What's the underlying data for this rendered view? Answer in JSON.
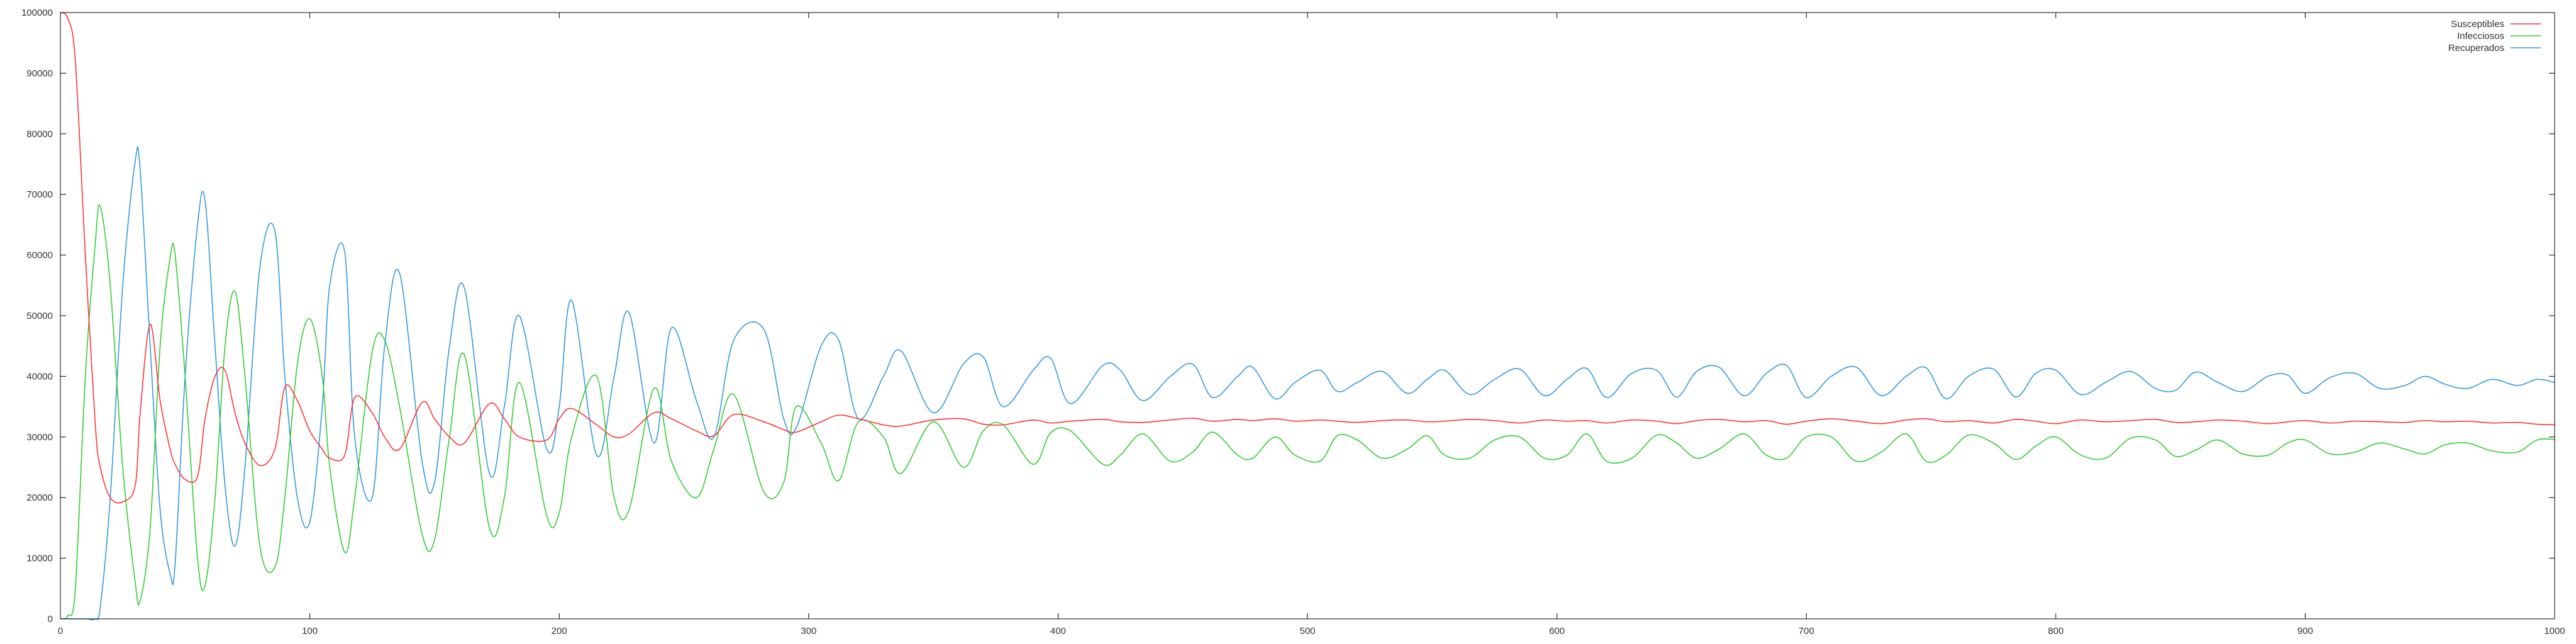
{
  "chart_data": {
    "type": "line",
    "title": "",
    "xlabel": "",
    "ylabel": "",
    "xlim": [
      0,
      1000
    ],
    "ylim": [
      0,
      100000
    ],
    "x_ticks": [
      0,
      100,
      200,
      300,
      400,
      500,
      600,
      700,
      800,
      900,
      1000
    ],
    "y_ticks": [
      0,
      10000,
      20000,
      30000,
      40000,
      50000,
      60000,
      70000,
      80000,
      90000,
      100000
    ],
    "grid": false,
    "legend_position": "top-right",
    "x": [
      0,
      3,
      6,
      10,
      14,
      16,
      20,
      25,
      30,
      32,
      36,
      40,
      44,
      46,
      50,
      55,
      58,
      62,
      66,
      70,
      74,
      80,
      86,
      90,
      95,
      100,
      105,
      108,
      114,
      118,
      125,
      130,
      136,
      145,
      150,
      156,
      162,
      172,
      178,
      184,
      195,
      200,
      205,
      215,
      222,
      228,
      238,
      245,
      255,
      262,
      270,
      282,
      290,
      295,
      305,
      312,
      320,
      330,
      337,
      350,
      362,
      370,
      378,
      390,
      397,
      405,
      418,
      425,
      434,
      445,
      454,
      462,
      472,
      478,
      487,
      495,
      505,
      512,
      520,
      530,
      540,
      548,
      555,
      565,
      575,
      585,
      595,
      604,
      612,
      620,
      630,
      640,
      648,
      656,
      665,
      675,
      684,
      692,
      700,
      710,
      720,
      730,
      740,
      748,
      756,
      765,
      775,
      784,
      792,
      800,
      810,
      820,
      830,
      840,
      848,
      856,
      865,
      875,
      885,
      893,
      900,
      910,
      920,
      930,
      940,
      948,
      956,
      965,
      975,
      985,
      993,
      1000
    ],
    "series": [
      {
        "name": "Susceptibles",
        "color": "#ff3333",
        "values": [
          99990,
          99000,
          92000,
          60000,
          32000,
          25000,
          20000,
          19300,
          22000,
          34000,
          48600,
          36000,
          28000,
          25500,
          23000,
          23500,
          33000,
          40000,
          41000,
          34000,
          29000,
          25300,
          28000,
          38200,
          36000,
          31000,
          28000,
          26500,
          27000,
          36500,
          34000,
          30000,
          28000,
          35700,
          33000,
          30000,
          29000,
          35500,
          33000,
          30000,
          29500,
          33000,
          34700,
          32000,
          30000,
          30500,
          34000,
          33000,
          31000,
          30200,
          33700,
          32500,
          31200,
          30800,
          32500,
          33600,
          33000,
          32000,
          31800,
          32800,
          33000,
          32100,
          32000,
          32800,
          32300,
          32600,
          32900,
          32500,
          32400,
          32800,
          33100,
          32600,
          32900,
          32700,
          33000,
          32600,
          32800,
          32600,
          32400,
          32700,
          32800,
          32500,
          32600,
          32900,
          32700,
          32300,
          32800,
          32600,
          32700,
          32300,
          32800,
          32600,
          32200,
          32700,
          32900,
          32500,
          32700,
          32100,
          32600,
          33000,
          32600,
          32200,
          32800,
          33000,
          32500,
          32700,
          32300,
          32900,
          32600,
          32200,
          32800,
          32500,
          32700,
          32900,
          32400,
          32500,
          32800,
          32600,
          32200,
          32500,
          32700,
          32300,
          32600,
          32500,
          32400,
          32700,
          32500,
          32600,
          32300,
          32400,
          32100,
          32000
        ]
      },
      {
        "name": "Infecciosos",
        "color": "#33cc33",
        "values": [
          10,
          500,
          5000,
          40000,
          62000,
          68000,
          55000,
          25000,
          6000,
          3000,
          15000,
          45000,
          59500,
          60000,
          40000,
          10000,
          5500,
          20000,
          45000,
          54000,
          40000,
          12000,
          8500,
          20000,
          42000,
          49500,
          40000,
          25000,
          11000,
          20000,
          44000,
          46000,
          35000,
          14000,
          13000,
          30000,
          43500,
          15000,
          20000,
          39000,
          17000,
          17500,
          30000,
          40000,
          20000,
          18000,
          38000,
          26000,
          20000,
          28000,
          37000,
          21000,
          22500,
          35000,
          29000,
          22800,
          32500,
          30000,
          24000,
          32500,
          25000,
          31000,
          32000,
          25500,
          30700,
          31000,
          25500,
          27000,
          30500,
          26000,
          27500,
          30800,
          27000,
          26500,
          30000,
          27000,
          26000,
          30200,
          29500,
          26500,
          28000,
          30200,
          27000,
          26500,
          29500,
          30000,
          26500,
          27000,
          30500,
          26000,
          26500,
          30300,
          29000,
          26500,
          28000,
          30500,
          27000,
          26500,
          30000,
          30000,
          26000,
          27500,
          30500,
          26000,
          27000,
          30300,
          29000,
          26300,
          28500,
          30000,
          27000,
          26500,
          29800,
          29500,
          26800,
          27800,
          29500,
          27200,
          27000,
          29000,
          29500,
          27200,
          27500,
          29000,
          28000,
          27200,
          28700,
          29000,
          27700,
          27500,
          29500,
          29600
        ]
      },
      {
        "name": "Recuperados",
        "color": "#3399dd",
        "values": [
          0,
          0,
          0,
          0,
          0,
          2000,
          20000,
          55000,
          75500,
          74000,
          45000,
          18000,
          7500,
          9000,
          40000,
          65000,
          69000,
          45000,
          22000,
          12000,
          25000,
          58000,
          64000,
          40000,
          20000,
          16000,
          35000,
          55000,
          60500,
          30000,
          20000,
          45000,
          57000,
          26000,
          22500,
          45000,
          54500,
          24000,
          35000,
          50000,
          28000,
          35000,
          52500,
          27000,
          40000,
          50500,
          29000,
          48000,
          36000,
          30000,
          46000,
          47800,
          33000,
          31500,
          45000,
          46000,
          33000,
          40000,
          44200,
          34000,
          42000,
          43200,
          35000,
          41000,
          43000,
          35500,
          41800,
          41000,
          36000,
          40000,
          42000,
          36500,
          40000,
          41500,
          36300,
          39000,
          41000,
          37500,
          39000,
          40800,
          37200,
          39500,
          41000,
          37000,
          39500,
          41200,
          36800,
          39500,
          41300,
          36500,
          40500,
          41000,
          36600,
          40800,
          41500,
          36800,
          40500,
          41800,
          36500,
          40000,
          41500,
          36800,
          40000,
          41400,
          36300,
          40000,
          41200,
          36600,
          40500,
          41000,
          37000,
          39000,
          40800,
          38000,
          37700,
          40700,
          39000,
          37500,
          40000,
          40200,
          37200,
          39800,
          40500,
          38000,
          38500,
          40000,
          38700,
          38000,
          39500,
          38500,
          39500,
          39000
        ]
      }
    ]
  }
}
